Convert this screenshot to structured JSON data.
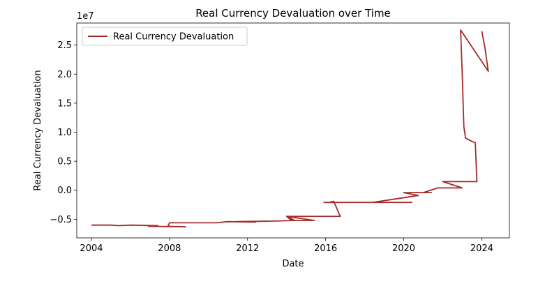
{
  "chart_data": {
    "type": "line",
    "title": "Real Currency Devaluation over Time",
    "xlabel": "Date",
    "ylabel": "Real Currency Devaluation",
    "y_offset_label": "1e7",
    "xlim": [
      "2003-04-01",
      "2025-06-01"
    ],
    "ylim": [
      -8.2,
      28.8
    ],
    "x_ticks": [
      {
        "value": "2004-01-01",
        "label": "2004"
      },
      {
        "value": "2008-01-01",
        "label": "2008"
      },
      {
        "value": "2012-01-01",
        "label": "2012"
      },
      {
        "value": "2016-01-01",
        "label": "2016"
      },
      {
        "value": "2020-01-01",
        "label": "2020"
      },
      {
        "value": "2024-01-01",
        "label": "2024"
      }
    ],
    "y_ticks": [
      {
        "value": -5,
        "label": "−0.5"
      },
      {
        "value": 0,
        "label": "0.0"
      },
      {
        "value": 5,
        "label": "0.5"
      },
      {
        "value": 10,
        "label": "1.0"
      },
      {
        "value": 15,
        "label": "1.5"
      },
      {
        "value": 20,
        "label": "2.0"
      },
      {
        "value": 25,
        "label": "2.5"
      }
    ],
    "grid": false,
    "legend_position": "top-left",
    "series": [
      {
        "name": "Real Currency Devaluation",
        "color": "#a52a2a",
        "points": [
          [
            "2004-01-01",
            -6.0
          ],
          [
            "2005-01-01",
            -6.0
          ],
          [
            "2005-06-01",
            -6.1
          ],
          [
            "2006-01-01",
            -6.0
          ],
          [
            "2007-06-01",
            -6.1
          ],
          [
            "2006-12-01",
            -6.2
          ],
          [
            "2008-11-01",
            -6.3
          ],
          [
            "2007-12-01",
            -6.2
          ],
          [
            "2008-01-01",
            -5.6
          ],
          [
            "2009-01-01",
            -5.6
          ],
          [
            "2010-06-01",
            -5.6
          ],
          [
            "2011-01-01",
            -5.4
          ],
          [
            "2012-06-01",
            -5.5
          ],
          [
            "2011-06-01",
            -5.4
          ],
          [
            "2013-06-01",
            -5.3
          ],
          [
            "2014-06-01",
            -5.2
          ],
          [
            "2014-01-01",
            -4.5
          ],
          [
            "2014-04-01",
            -5.2
          ],
          [
            "2015-06-01",
            -5.2
          ],
          [
            "2014-01-01",
            -4.5
          ],
          [
            "2016-01-01",
            -4.5
          ],
          [
            "2016-10-01",
            -4.5
          ],
          [
            "2016-06-01",
            -1.9
          ],
          [
            "2016-03-01",
            -2.1
          ],
          [
            "2016-00-01",
            -2.1
          ],
          [
            "2019-01-01",
            -2.1
          ],
          [
            "2020-06-01",
            -2.1
          ],
          [
            "2018-06-01",
            -2.1
          ],
          [
            "2020-10-01",
            -0.9
          ],
          [
            "2020-01-01",
            -0.4
          ],
          [
            "2021-06-01",
            -0.4
          ],
          [
            "2021-01-01",
            -0.4
          ],
          [
            "2021-10-01",
            0.4
          ],
          [
            "2022-06-01",
            0.4
          ],
          [
            "2023-01-01",
            0.4
          ],
          [
            "2022-01-01",
            1.5
          ],
          [
            "2023-06-01",
            1.5
          ],
          [
            "2023-10-01",
            1.5
          ],
          [
            "2023-09-01",
            8.2
          ],
          [
            "2023-07-01",
            8.4
          ],
          [
            "2023-05-01",
            8.7
          ],
          [
            "2023-03-01",
            9.0
          ],
          [
            "2023-02-01",
            11.0
          ],
          [
            "2023-01-01",
            20.0
          ],
          [
            "2022-12-01",
            27.6
          ],
          [
            "2024-05-01",
            20.5
          ],
          [
            "2024-03-01",
            24.5
          ],
          [
            "2024-01-01",
            27.4
          ]
        ]
      }
    ]
  }
}
